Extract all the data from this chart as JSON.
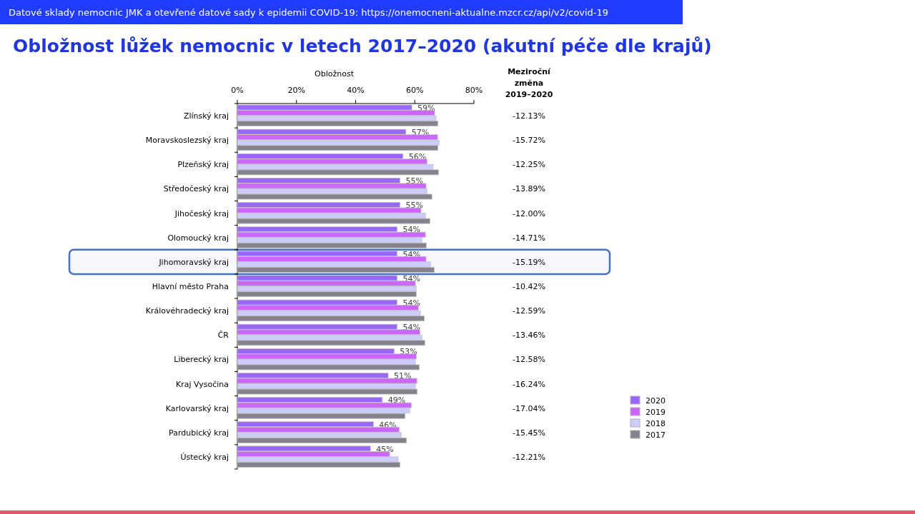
{
  "chart_data": {
    "type": "bar",
    "orientation": "horizontal",
    "title": "Obložnost lůžek nemocnic v letech 2017–2020 (akutní péče dle krajů)",
    "xlabel": "Obložnost",
    "categories": [
      "Zlínský kraj",
      "Moravskoslezský kraj",
      "Plzeňský kraj",
      "Středočeský kraj",
      "Jihočeský kraj",
      "Olomoucký kraj",
      "Jihomoravský kraj",
      "Hlavní město Praha",
      "Královéhradecký kraj",
      "ČR",
      "Liberecký kraj",
      "Kraj Vysočina",
      "Karlovarský kraj",
      "Pardubický kraj",
      "Ústecký kraj"
    ],
    "series": [
      {
        "name": "2020",
        "color": "#9966ff",
        "values": [
          59,
          57,
          56,
          55,
          55,
          54,
          54,
          54,
          54,
          54,
          53,
          51,
          49,
          46,
          45
        ],
        "value_labels": [
          "59%",
          "57%",
          "56%",
          "55%",
          "55%",
          "54%",
          "54%",
          "54%",
          "54%",
          "54%",
          "53%",
          "51%",
          "49%",
          "46%",
          "45%"
        ]
      },
      {
        "name": "2019",
        "color": "#cc66ff",
        "values": [
          66.7,
          67.7,
          64.1,
          63.8,
          62.1,
          63.6,
          63.8,
          60.2,
          61.2,
          61.7,
          60.5,
          60.7,
          58.8,
          54.7,
          51.5
        ]
      },
      {
        "name": "2018",
        "color": "#ccccff",
        "values": [
          67.2,
          68.2,
          66.2,
          64.1,
          63.6,
          62.4,
          65.3,
          60.5,
          61.9,
          62.4,
          60.2,
          60.2,
          58.3,
          55.4,
          54.4
        ]
      },
      {
        "name": "2017",
        "color": "#84838d",
        "values": [
          67.8,
          67.8,
          68.0,
          65.8,
          65.1,
          63.9,
          66.6,
          60.5,
          63.2,
          63.4,
          61.5,
          60.8,
          56.7,
          57.2,
          55.0
        ]
      }
    ],
    "xlim": [
      0,
      80
    ],
    "xticks": [
      {
        "value": 0,
        "label": "0%"
      },
      {
        "value": 20,
        "label": "20%"
      },
      {
        "value": 40,
        "label": "40%"
      },
      {
        "value": 60,
        "label": "60%"
      },
      {
        "value": 80,
        "label": "80%"
      }
    ],
    "grid": false,
    "legend": "bottom right",
    "bands": [
      {
        "axis": "y",
        "from": "Jihomoravský kraj",
        "to": "Jihomoravský kraj",
        "color": "#4472c4"
      }
    ],
    "annotations": [
      "Datové sklady nemocnic JMK a otevřené datové sady k epidemii COVID-19: https://onemocneni-aktualne.mzcr.cz/api/v2/covid-19",
      "Meziroční změna 2019–2020",
      "-12.13%",
      "-15.72%",
      "-12.25%",
      "-13.89%",
      "-12.00%",
      "-14.71%",
      "-15.19%",
      "-10.42%",
      "-12.59%",
      "-13.46%",
      "-12.58%",
      "-16.24%",
      "-17.04%",
      "-15.45%",
      "-12.21%"
    ]
  }
}
